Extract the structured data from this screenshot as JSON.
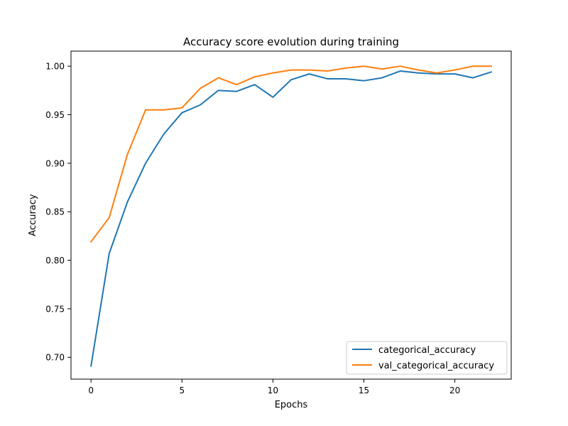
{
  "chart_data": {
    "type": "line",
    "title": "Accuracy score evolution during training",
    "xlabel": "Epochs",
    "ylabel": "Accuracy",
    "xlim": [
      -1.1,
      23.1
    ],
    "ylim": [
      0.6775,
      1.0155
    ],
    "xticks": [
      0,
      5,
      10,
      15,
      20
    ],
    "yticks": [
      0.7,
      0.75,
      0.8,
      0.85,
      0.9,
      0.95,
      1.0
    ],
    "ytick_labels": [
      "0.70",
      "0.75",
      "0.80",
      "0.85",
      "0.90",
      "0.95",
      "1.00"
    ],
    "grid": false,
    "legend_position": "lower-right",
    "x": [
      0,
      1,
      2,
      3,
      4,
      5,
      6,
      7,
      8,
      9,
      10,
      11,
      12,
      13,
      14,
      15,
      16,
      17,
      18,
      19,
      20,
      21,
      22
    ],
    "series": [
      {
        "name": "categorical_accuracy",
        "color": "#1f77b4",
        "values": [
          0.691,
          0.807,
          0.86,
          0.9,
          0.93,
          0.952,
          0.96,
          0.975,
          0.974,
          0.981,
          0.968,
          0.986,
          0.992,
          0.987,
          0.987,
          0.985,
          0.988,
          0.995,
          0.993,
          0.992,
          0.992,
          0.988,
          0.994
        ]
      },
      {
        "name": "val_categorical_accuracy",
        "color": "#ff7f0e",
        "values": [
          0.819,
          0.844,
          0.909,
          0.955,
          0.955,
          0.957,
          0.977,
          0.988,
          0.981,
          0.989,
          0.993,
          0.996,
          0.996,
          0.995,
          0.998,
          1.0,
          0.997,
          1.0,
          0.996,
          0.993,
          0.996,
          1.0,
          1.0
        ]
      }
    ]
  }
}
